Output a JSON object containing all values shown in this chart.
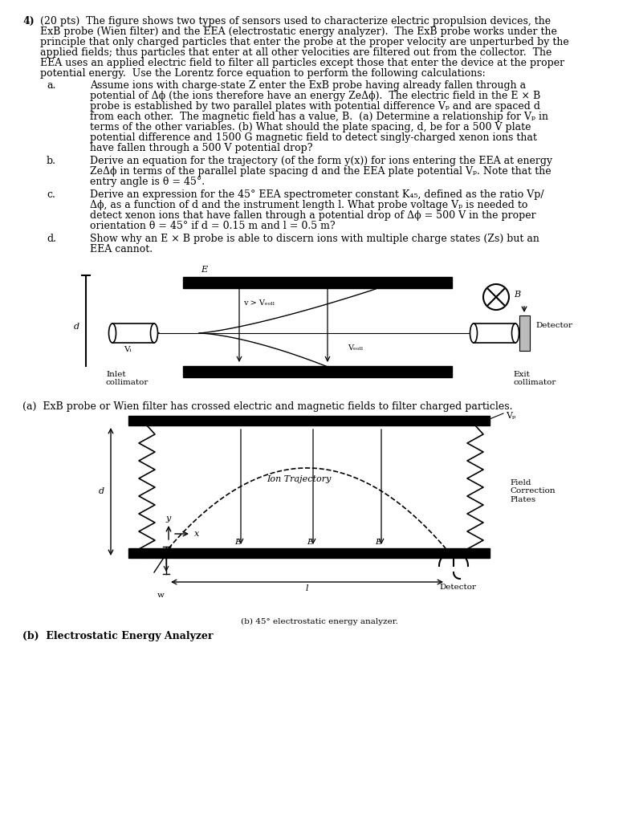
{
  "background_color": "#ffffff",
  "fs_main": 9.0,
  "fs_small": 7.5,
  "fs_label": 8.0,
  "text_blocks": {
    "header": "4)   (20 pts)  The figure shows two types of sensors used to characterize electric propulsion devices, the\n      ExB probe (Wien filter) and the EEA (electrostatic energy analyzer).  The ExB probe works under the\n      principle that only charged particles that enter the probe at the proper velocity are unperturbed by the\n      applied fields; thus particles that enter at all other velocities are filtered out from the collector.  The\n      EEA uses an applied electric field to filter all particles except those that enter the device at the proper\n      potential energy.  Use the Lorentz force equation to perform the following calculations:",
    "sub_a": "a.   Assume ions with charge-state Z enter the ExB probe having already fallen through a\n         potential of Δϕ (the ions therefore have an energy ZeΔϕ).  The electric field in the E × B\n         probe is established by two parallel plates with potential difference Vp and are spaced d\n         from each other.  The magnetic field has a value, B.  (a) Determine a relationship for Vp in\n         terms of the other variables. (b) What should the plate spacing, d, be for a 500 V plate\n         potential difference and 1500 G magnetic field to detect singly-charged xenon ions that\n         have fallen through a 500 V potential drop?",
    "sub_b": "b.   Derive an equation for the trajectory (of the form y(x)) for ions entering the EEA at energy\n         ZeΔϕ in terms of the parallel plate spacing d and the EEA plate potential Vp. Note that the\n         entry angle is θ = 45°.",
    "sub_c": "c.   Derive an expression for the 45° EEA spectrometer constant K45, defined as the ratio Vp/\n         Δϕ, as a function of d and the instrument length l. What probe voltage Vp is needed to\n         detect xenon ions that have fallen through a potential drop of Δϕ = 500 V in the proper\n         orientation θ = 45° if d = 0.15 m and l = 0.5 m?",
    "sub_d": "d.   Show why an E × B probe is able to discern ions with multiple charge states (Zs) but an\n         EEA cannot.",
    "caption_a": "(a)  ExB probe or Wien filter has crossed electric and magnetic fields to filter charged particles.",
    "caption_b_small": "(b) 45° electrostatic energy analyzer.",
    "caption_b_large": "(b)  Electrostatic Energy Analyzer"
  }
}
